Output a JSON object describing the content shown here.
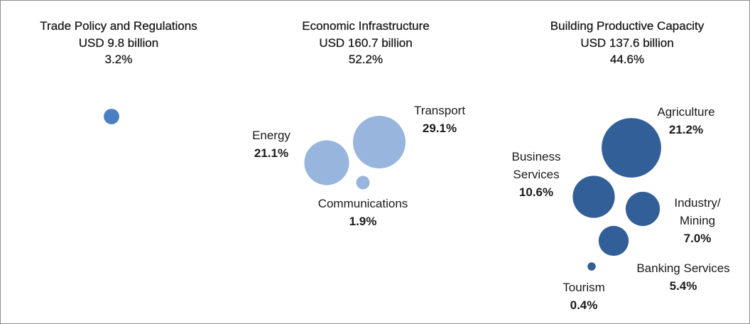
{
  "chart_data": {
    "type": "bubble",
    "groups": [
      {
        "title": "Trade Policy and Regulations",
        "subtitle": "USD 9.8 billion",
        "value": 3.2,
        "value_label": "3.2%",
        "color": "#4a80c2",
        "names": [],
        "values": [],
        "value_labels": []
      },
      {
        "title": "Economic Infrastructure",
        "subtitle": "USD 160.7 billion",
        "value": 52.2,
        "value_label": "52.2%",
        "color": "#97b5dd",
        "names": [
          "Energy",
          "Transport",
          "Communications"
        ],
        "values": [
          21.1,
          29.1,
          1.9
        ],
        "value_labels": [
          "21.1%",
          "29.1%",
          "1.9%"
        ]
      },
      {
        "title": "Building Productive Capacity",
        "subtitle": "USD 137.6 billion",
        "value": 44.6,
        "value_label": "44.6%",
        "color": "#325f97",
        "names": [
          "Agriculture",
          "Business Services",
          "Industry/ Mining",
          "Banking Services",
          "Tourism"
        ],
        "values": [
          21.2,
          10.6,
          7.0,
          5.4,
          0.4
        ],
        "value_labels": [
          "21.2%",
          "10.6%",
          "7.0%",
          "5.4%",
          "0.4%"
        ]
      }
    ]
  }
}
